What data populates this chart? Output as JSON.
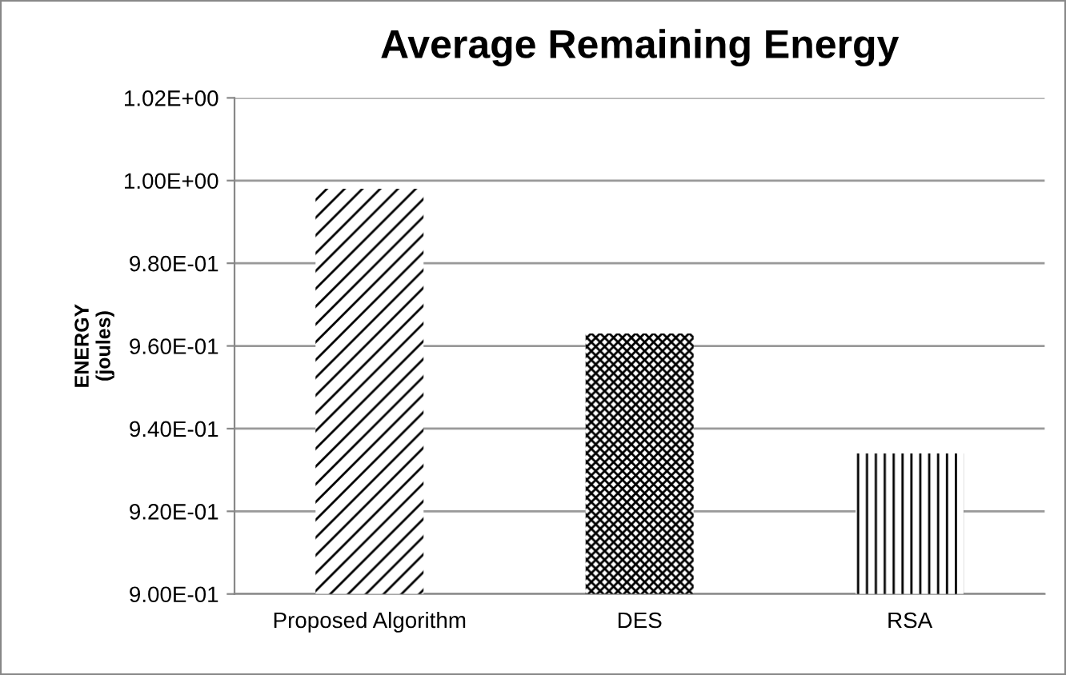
{
  "chart_data": {
    "type": "bar",
    "title": "Average Remaining Energy",
    "ylabel": "ENERGY\n(joules)",
    "categories": [
      "Proposed Algorithm",
      "DES",
      "RSA"
    ],
    "values": [
      0.998,
      0.963,
      0.934
    ],
    "colors": [
      "#000000",
      "#000000",
      "#000000"
    ],
    "ylim": [
      0.9,
      1.02
    ],
    "yticks": [
      {
        "value": 0.9,
        "label": "9.00E-01"
      },
      {
        "value": 0.92,
        "label": "9.20E-01"
      },
      {
        "value": 0.94,
        "label": "9.40E-01"
      },
      {
        "value": 0.96,
        "label": "9.60E-01"
      },
      {
        "value": 0.98,
        "label": "9.80E-01"
      },
      {
        "value": 1.0,
        "label": "1.00E+00"
      },
      {
        "value": 1.02,
        "label": "1.02E+00"
      }
    ],
    "grid": "y",
    "legend": false
  }
}
